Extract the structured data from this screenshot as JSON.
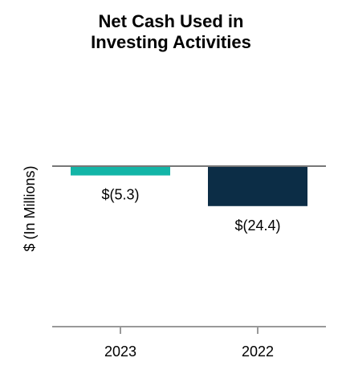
{
  "chart_data": {
    "type": "bar",
    "title": "Net Cash Used in\nInvesting Activities",
    "ylabel": "$ (In Millions)",
    "xlabel": "",
    "categories": [
      "2023",
      "2022"
    ],
    "values": [
      -5.3,
      -24.4
    ],
    "data_labels": [
      "$(5.3)",
      "$(24.4)"
    ],
    "colors": [
      "#13b5a7",
      "#0c2d46"
    ],
    "grid": false
  }
}
